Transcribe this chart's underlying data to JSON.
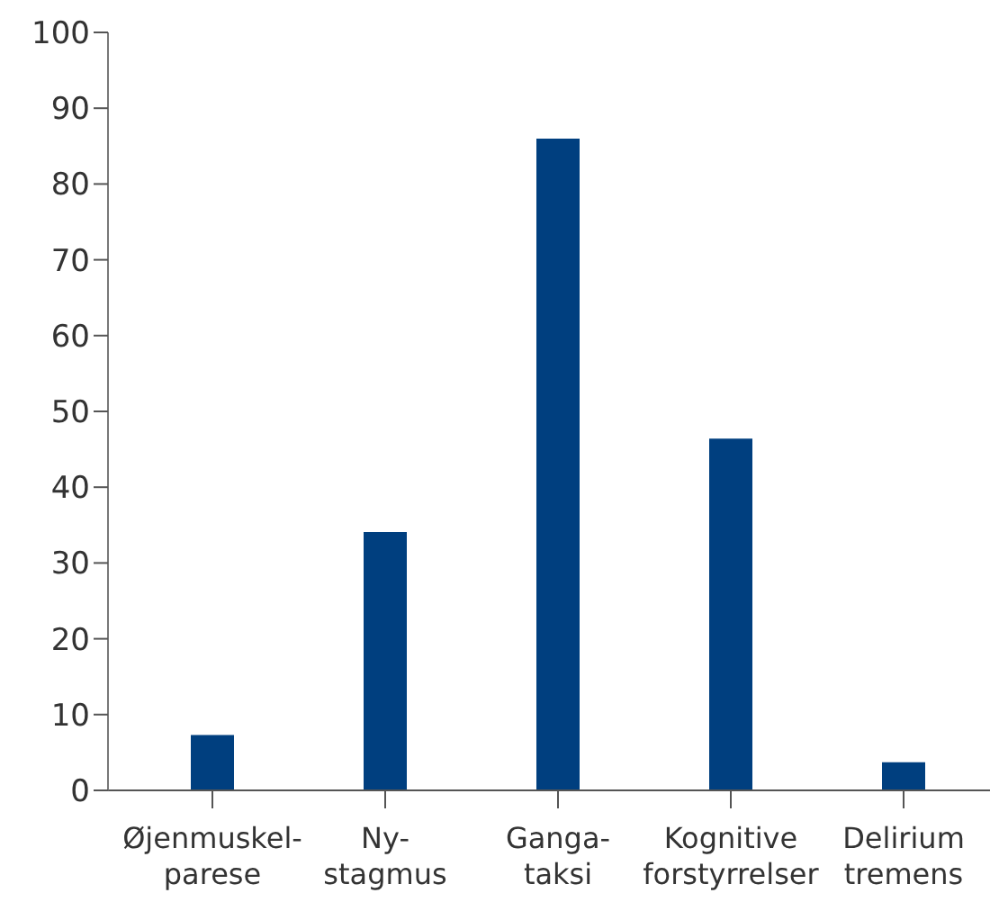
{
  "chart_data": {
    "type": "bar",
    "categories": [
      "Øjenmuskel- parese",
      "Ny- stagmus",
      "Ganga- taksi",
      "Kognitive forstyrrelser",
      "Delirium tremens"
    ],
    "values": [
      7.3,
      34.1,
      86,
      46.4,
      3.7
    ],
    "color": "#003f7f",
    "ylim": [
      0,
      100
    ],
    "yticks": [
      0,
      10,
      20,
      30,
      40,
      50,
      60,
      70,
      80,
      90,
      100
    ],
    "grid": false,
    "legend": false
  }
}
